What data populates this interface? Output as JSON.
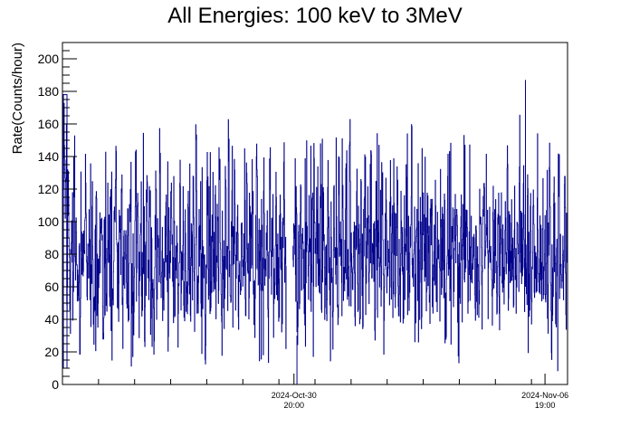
{
  "chart_data": {
    "type": "line",
    "title": "All Energies:  100 keV to 3MeV",
    "xlabel": "",
    "ylabel": "Rate(Counts/hour)",
    "ylim": [
      0,
      210
    ],
    "y_ticks": [
      "0",
      "20",
      "40",
      "60",
      "80",
      "100",
      "120",
      "140",
      "160",
      "180",
      "200"
    ],
    "x_ticks": [
      {
        "date": "2024-Oct-30",
        "time": "20:00"
      },
      {
        "date": "2024-Nov-06",
        "time": "19:00"
      }
    ],
    "xlim": [
      "2024-Oct-24 10:00",
      "2024-Nov-07 10:00"
    ],
    "gap": [
      "2024-Oct-30 15:00",
      "2024-Oct-30 19:00"
    ],
    "series_color": "#00008b",
    "series": [
      {
        "values": [
          132,
          152,
          112,
          140,
          60,
          126,
          88,
          54,
          104,
          98,
          62,
          134,
          76,
          88,
          62,
          46,
          64,
          36,
          96,
          56,
          90,
          64,
          122,
          88,
          62,
          78,
          96,
          50,
          58,
          104,
          60,
          40,
          82,
          132,
          58,
          64,
          84,
          90,
          110,
          70,
          50,
          86,
          56,
          60,
          100,
          88,
          70,
          118,
          34,
          58,
          60,
          92,
          138,
          80,
          64,
          54,
          100,
          86,
          112,
          30,
          78,
          64,
          90,
          56,
          106,
          42,
          88,
          122,
          56,
          70,
          50,
          88,
          134,
          66,
          98,
          52,
          76,
          104,
          58,
          60,
          86,
          30,
          66,
          118,
          80,
          62,
          100,
          54,
          112,
          70,
          42,
          82,
          120,
          62,
          94,
          56,
          148,
          70,
          90,
          48,
          62,
          88,
          110,
          68,
          38,
          90,
          74,
          104,
          84,
          58,
          116,
          60,
          70,
          102,
          46,
          82,
          126,
          60,
          76,
          100,
          44,
          86,
          64,
          58,
          130,
          78,
          60,
          94,
          68,
          110,
          52,
          80,
          142,
          62,
          58,
          88,
          106,
          62,
          70,
          98,
          56,
          36,
          84,
          120,
          66,
          102,
          58,
          76,
          90,
          62,
          74,
          108,
          62,
          90,
          56,
          126,
          80,
          44,
          96,
          70,
          58,
          112,
          88,
          62,
          140,
          76,
          60,
          98,
          54,
          86,
          118,
          62,
          72,
          100,
          46,
          84,
          64,
          110,
          58,
          76,
          92,
          62,
          132,
          70,
          50,
          96,
          84,
          62,
          108,
          58,
          40,
          88,
          124,
          66,
          78,
          100,
          52,
          90,
          68,
          116,
          64,
          74,
          102,
          58,
          88,
          134,
          62,
          80,
          96,
          48,
          70,
          112,
          62,
          86,
          60,
          104,
          76,
          54,
          92,
          128,
          66,
          70,
          100,
          58,
          84,
          64,
          118,
          56,
          90,
          74,
          62,
          100,
          36,
          86,
          70,
          112,
          60,
          94,
          80,
          54,
          122,
          66,
          88,
          58,
          102,
          72,
          62,
          96,
          48,
          84,
          76,
          110,
          62,
          90,
          58,
          130,
          68,
          84,
          100,
          52,
          74,
          62,
          118,
          88,
          60,
          96,
          70,
          44,
          106,
          80,
          64,
          92,
          58,
          126,
          72,
          86,
          62,
          100,
          54,
          78,
          112,
          66,
          90,
          58,
          140,
          70,
          84,
          62,
          98,
          50,
          76,
          116,
          64,
          88,
          60,
          104,
          72,
          56,
          94,
          120,
          62,
          86,
          100,
          58,
          74,
          132,
          66,
          90,
          80,
          46,
          108,
          62,
          84,
          70,
          98,
          56,
          122,
          76,
          60,
          92,
          104,
          64,
          80,
          58,
          114,
          72,
          90,
          62,
          100,
          48,
          84,
          126,
          66,
          74,
          60,
          102,
          88,
          58,
          96,
          70,
          112,
          64,
          80,
          54,
          92,
          136,
          62,
          76,
          100,
          58,
          86,
          70,
          118,
          62,
          94,
          52,
          80,
          108,
          66,
          90,
          60,
          104,
          74,
          58,
          98,
          124,
          64,
          84,
          70,
          102,
          56,
          90,
          76,
          62,
          112,
          68,
          88,
          58,
          96,
          44,
          80,
          130,
          66,
          72,
          60,
          100,
          86,
          62,
          94,
          70,
          116,
          56,
          84,
          68,
          98,
          62,
          108,
          76,
          58,
          92,
          120,
          64,
          82,
          70,
          100,
          54,
          90,
          74,
          62,
          112,
          66,
          86,
          58,
          104,
          80,
          48,
          96,
          136,
          62,
          76,
          90,
          60,
          102,
          70,
          84,
          58,
          118,
          66,
          92,
          74,
          62,
          100,
          52,
          88,
          112,
          64,
          80,
          70,
          98,
          58,
          124,
          66,
          86,
          62,
          94,
          76,
          56,
          104,
          82,
          62,
          90,
          70,
          146,
          60,
          84,
          74,
          100,
          58,
          92,
          66,
          114,
          80,
          62,
          96,
          50,
          86,
          122,
          64,
          78,
          70,
          102,
          58,
          90,
          74,
          62,
          108,
          68,
          84,
          58,
          98,
          46,
          80,
          128,
          66,
          72,
          62,
          104,
          88,
          58,
          94,
          70,
          118,
          60,
          84,
          76,
          100,
          62,
          110,
          56,
          90
        ]
      }
    ],
    "noise_seed": 20241030
  }
}
